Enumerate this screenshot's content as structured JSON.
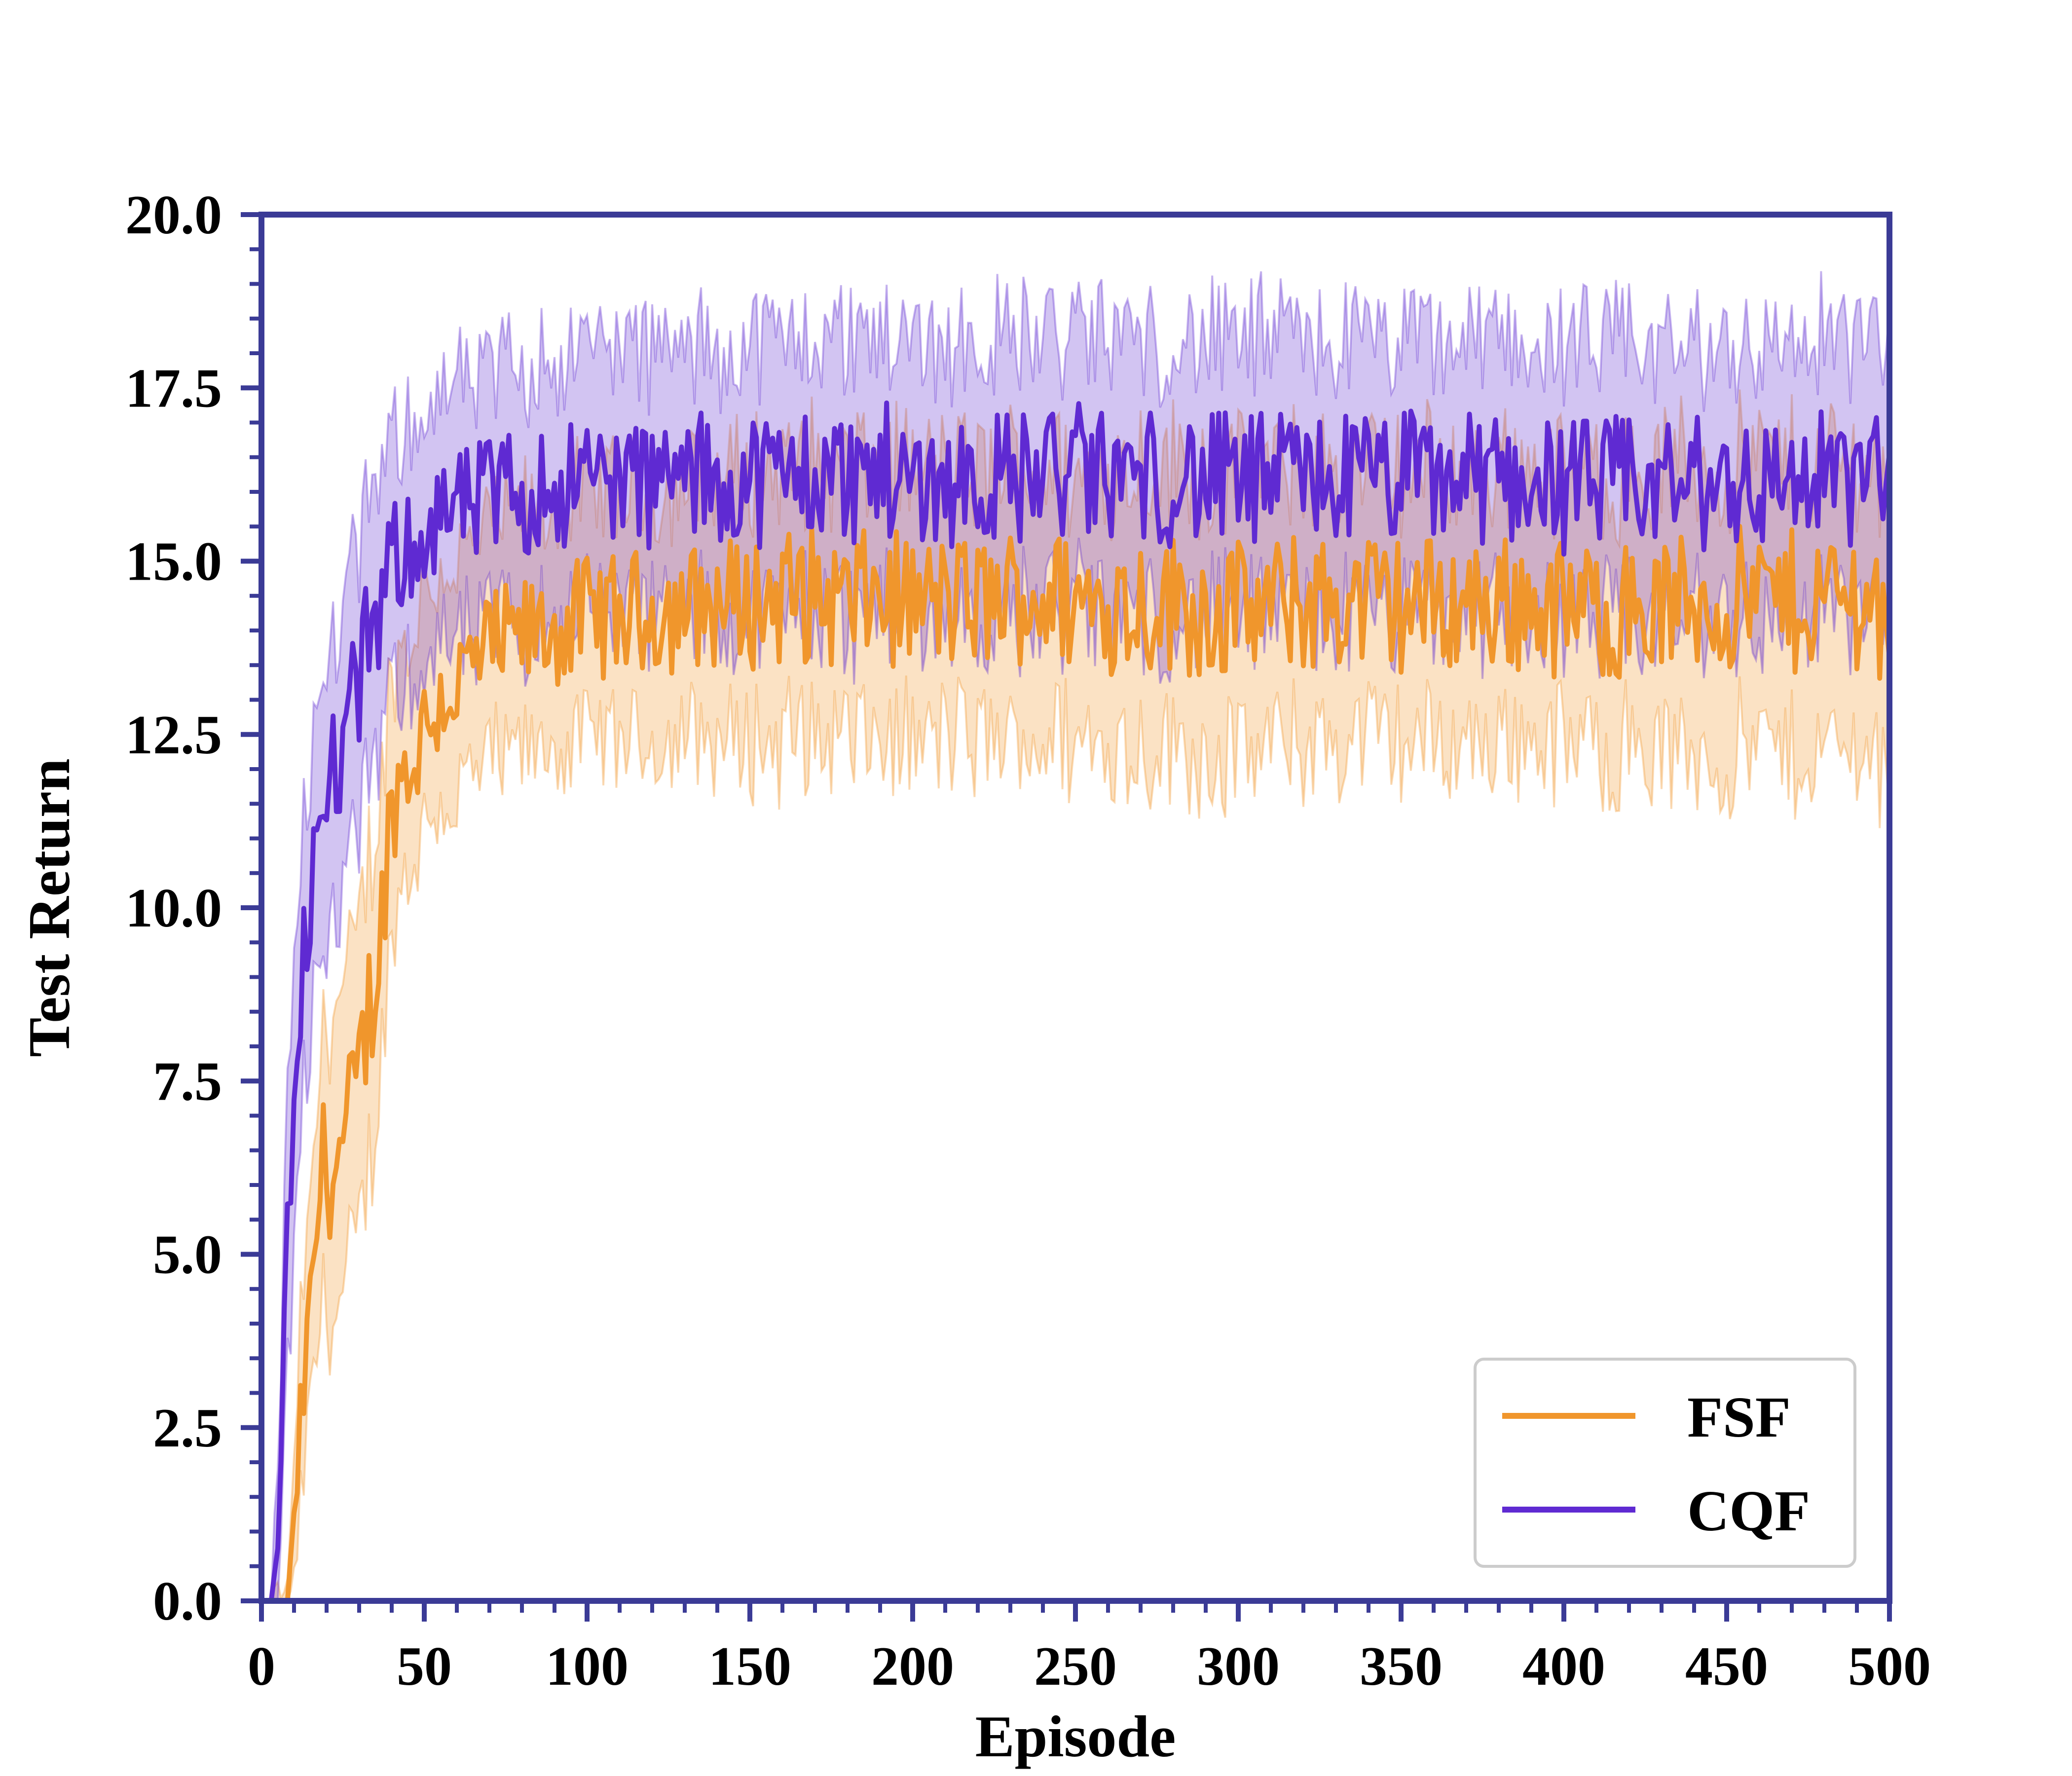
{
  "chart_data": {
    "type": "line",
    "title": "",
    "xlabel": "Episode",
    "ylabel": "Test Return",
    "xlim": [
      0,
      500
    ],
    "ylim": [
      0,
      20
    ],
    "x_ticks": [
      "0",
      "50",
      "100",
      "150",
      "200",
      "250",
      "300",
      "350",
      "400",
      "450",
      "500"
    ],
    "y_ticks": [
      "0.0",
      "2.5",
      "5.0",
      "7.5",
      "10.0",
      "12.5",
      "15.0",
      "17.5",
      "20.0"
    ],
    "grid": false,
    "legend_position": "bottom-right",
    "frame_color": "#3b3b96",
    "series": [
      {
        "name": "FSF",
        "color": "#f0962c",
        "shading": "min-max band",
        "x": [
          0,
          5,
          8,
          10,
          12,
          15,
          18,
          20,
          22,
          25,
          28,
          30,
          33,
          36,
          38,
          40,
          42,
          45,
          48,
          50,
          55,
          60,
          65,
          70,
          75,
          80,
          90,
          100,
          110,
          120,
          130,
          140,
          150,
          160,
          170,
          180,
          190,
          200,
          210,
          220,
          230,
          240,
          250,
          260,
          270,
          280,
          290,
          300,
          310,
          320,
          330,
          340,
          350,
          360,
          370,
          380,
          390,
          400,
          410,
          420,
          430,
          440,
          450,
          460,
          470,
          480,
          490,
          500
        ],
        "mean": [
          0.0,
          0.0,
          0.0,
          1.0,
          2.5,
          4.2,
          6.0,
          6.5,
          6.2,
          6.5,
          7.0,
          7.5,
          8.5,
          9.3,
          10.5,
          11.5,
          11.8,
          12.0,
          12.3,
          12.6,
          13.0,
          13.2,
          13.5,
          13.7,
          13.8,
          13.9,
          14.0,
          14.2,
          14.2,
          14.3,
          14.3,
          14.4,
          14.4,
          14.5,
          14.5,
          14.4,
          14.5,
          14.4,
          14.4,
          14.4,
          14.5,
          14.5,
          14.4,
          14.4,
          14.4,
          14.4,
          14.3,
          14.3,
          14.3,
          14.4,
          14.4,
          14.4,
          14.4,
          14.4,
          14.4,
          14.4,
          14.4,
          14.3,
          14.3,
          14.3,
          14.3,
          14.4,
          14.4,
          14.5,
          14.4,
          14.5,
          14.5,
          14.3
        ],
        "lower": [
          0.0,
          0.0,
          0.0,
          0.3,
          1.5,
          3.0,
          4.2,
          4.5,
          4.2,
          4.5,
          5.0,
          5.5,
          6.5,
          7.5,
          8.8,
          9.8,
          10.3,
          10.7,
          11.0,
          11.3,
          11.6,
          11.8,
          12.0,
          12.2,
          12.3,
          12.4,
          12.5,
          12.6,
          12.6,
          12.6,
          12.6,
          12.6,
          12.6,
          12.6,
          12.6,
          12.6,
          12.6,
          12.6,
          12.6,
          12.6,
          12.6,
          12.6,
          12.6,
          12.5,
          12.5,
          12.5,
          12.4,
          12.4,
          12.5,
          12.5,
          12.6,
          12.6,
          12.6,
          12.6,
          12.6,
          12.6,
          12.6,
          12.5,
          12.5,
          12.5,
          12.4,
          12.4,
          12.4,
          12.5,
          12.4,
          12.5,
          12.5,
          12.3
        ],
        "upper": [
          0.0,
          0.0,
          0.0,
          1.8,
          3.8,
          5.5,
          7.6,
          8.4,
          8.3,
          8.6,
          9.0,
          9.5,
          10.5,
          11.2,
          12.2,
          13.2,
          13.4,
          13.6,
          14.0,
          14.4,
          14.6,
          14.8,
          15.1,
          15.3,
          15.4,
          15.5,
          15.6,
          15.8,
          15.8,
          15.9,
          16.0,
          16.0,
          16.1,
          16.2,
          16.2,
          16.1,
          16.2,
          16.1,
          16.1,
          16.1,
          16.2,
          16.2,
          16.1,
          16.2,
          16.2,
          16.2,
          16.1,
          16.1,
          16.1,
          16.2,
          16.2,
          16.2,
          16.2,
          16.2,
          16.2,
          16.2,
          16.2,
          16.1,
          16.1,
          16.1,
          16.1,
          16.2,
          16.2,
          16.3,
          16.2,
          16.3,
          16.3,
          16.1
        ]
      },
      {
        "name": "CQF",
        "color": "#5f2ad2",
        "shading": "min-max band",
        "x": [
          0,
          3,
          5,
          7,
          9,
          11,
          13,
          15,
          18,
          20,
          22,
          25,
          28,
          30,
          33,
          36,
          38,
          40,
          42,
          45,
          48,
          50,
          55,
          60,
          65,
          70,
          75,
          80,
          90,
          100,
          110,
          120,
          130,
          140,
          150,
          160,
          170,
          180,
          190,
          200,
          210,
          220,
          230,
          240,
          250,
          260,
          270,
          280,
          290,
          300,
          310,
          320,
          330,
          340,
          350,
          360,
          370,
          380,
          390,
          400,
          410,
          420,
          430,
          440,
          450,
          460,
          470,
          480,
          490,
          500
        ],
        "mean": [
          0.0,
          0.2,
          1.0,
          3.5,
          6.5,
          8.5,
          9.5,
          10.2,
          10.8,
          11.5,
          12.0,
          12.2,
          12.8,
          13.2,
          13.8,
          14.2,
          14.6,
          14.9,
          15.1,
          15.3,
          15.4,
          15.5,
          15.6,
          15.7,
          15.8,
          15.9,
          16.0,
          16.0,
          16.1,
          16.2,
          16.2,
          16.1,
          16.2,
          16.2,
          16.2,
          16.2,
          16.3,
          16.2,
          16.3,
          16.2,
          16.2,
          16.2,
          16.2,
          16.3,
          16.3,
          16.2,
          16.2,
          16.2,
          16.2,
          16.1,
          16.2,
          16.2,
          16.2,
          16.2,
          16.2,
          16.2,
          16.2,
          16.2,
          16.2,
          16.1,
          16.1,
          16.1,
          16.1,
          16.1,
          16.2,
          16.1,
          16.2,
          16.2,
          16.2,
          16.2
        ],
        "lower": [
          0.0,
          0.0,
          0.3,
          2.0,
          4.5,
          6.8,
          7.8,
          8.5,
          9.0,
          9.5,
          10.0,
          10.3,
          10.8,
          11.3,
          12.0,
          12.5,
          13.0,
          13.3,
          13.5,
          13.6,
          13.7,
          13.8,
          13.9,
          14.0,
          14.1,
          14.2,
          14.3,
          14.3,
          14.4,
          14.5,
          14.5,
          14.4,
          14.4,
          14.4,
          14.4,
          14.4,
          14.5,
          14.4,
          14.5,
          14.4,
          14.4,
          14.4,
          14.4,
          14.5,
          14.5,
          14.4,
          14.4,
          14.4,
          14.4,
          14.3,
          14.4,
          14.4,
          14.4,
          14.4,
          14.4,
          14.4,
          14.4,
          14.4,
          14.4,
          14.3,
          14.3,
          14.3,
          14.3,
          14.3,
          14.4,
          14.3,
          14.4,
          14.4,
          14.4,
          14.4
        ],
        "upper": [
          0.0,
          0.5,
          1.8,
          5.0,
          8.5,
          10.3,
          11.3,
          12.0,
          12.6,
          13.2,
          13.7,
          14.0,
          14.5,
          15.0,
          15.6,
          16.0,
          16.3,
          16.5,
          16.7,
          16.9,
          17.0,
          17.1,
          17.2,
          17.3,
          17.4,
          17.5,
          17.6,
          17.7,
          17.8,
          17.9,
          17.9,
          17.8,
          17.9,
          17.9,
          18.0,
          18.0,
          18.1,
          18.0,
          18.1,
          18.0,
          18.0,
          18.0,
          18.0,
          18.1,
          18.1,
          18.0,
          18.0,
          18.0,
          18.0,
          17.9,
          18.0,
          18.0,
          18.0,
          18.0,
          18.0,
          18.0,
          18.0,
          18.0,
          18.0,
          17.9,
          17.9,
          17.9,
          17.9,
          17.9,
          18.0,
          17.9,
          18.0,
          18.0,
          18.0,
          18.0
        ]
      }
    ]
  }
}
